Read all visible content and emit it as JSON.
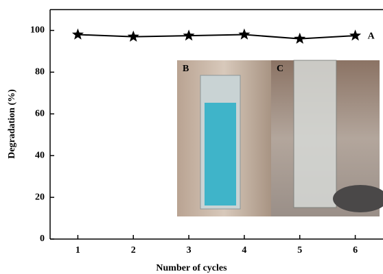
{
  "chart_data": {
    "type": "line",
    "x_label": "Number of cycles",
    "y_label": "Degradation (%)",
    "x": [
      1,
      2,
      3,
      4,
      5,
      6
    ],
    "series": [
      {
        "name": "A",
        "color": "#000000",
        "values": [
          98,
          97,
          97.5,
          98,
          96,
          97.5
        ]
      }
    ],
    "xlim": [
      0.5,
      6.5
    ],
    "xticks": [
      1,
      2,
      3,
      4,
      5,
      6
    ],
    "ylim": [
      0,
      110
    ],
    "yticks": [
      0,
      20,
      40,
      60,
      80,
      100
    ],
    "grid": false,
    "marker": "star",
    "annotations": [
      "B",
      "C"
    ]
  }
}
